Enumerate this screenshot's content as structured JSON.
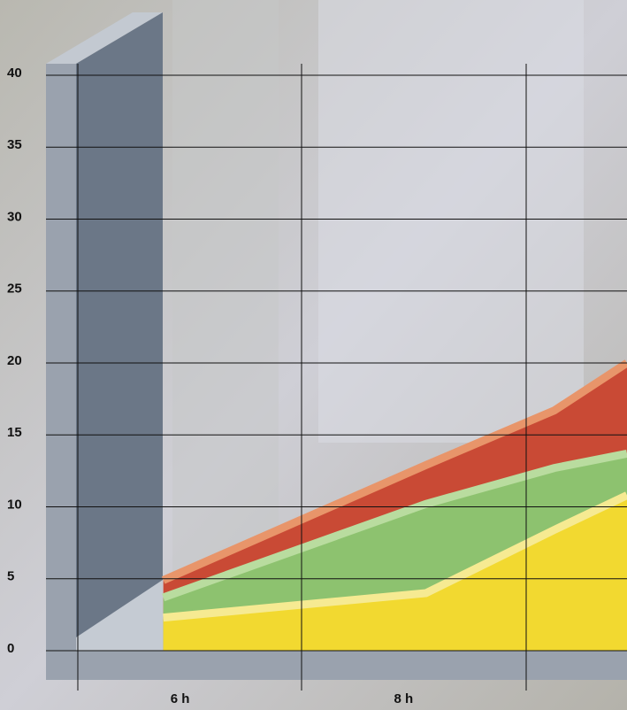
{
  "chart_data": {
    "type": "area",
    "x": [
      5.85,
      8.2,
      9.35,
      10
    ],
    "xlim": [
      4.8,
      10
    ],
    "xticks": [
      {
        "value": 6,
        "label": "6 h"
      },
      {
        "value": 8,
        "label": "8 h"
      }
    ],
    "ylim": [
      0,
      40
    ],
    "yticks": [
      0,
      5,
      10,
      15,
      20,
      25,
      30,
      35,
      40
    ],
    "grid": true,
    "series": [
      {
        "color": "#c94a35",
        "edge_color": "#e8956a",
        "values": [
          4.9,
          12.9,
          16.7,
          20
        ]
      },
      {
        "color": "#8dc26f",
        "edge_color": "#b9dc9f",
        "values": [
          3.7,
          10.2,
          12.7,
          13.7
        ]
      },
      {
        "color": "#f2d930",
        "edge_color": "#f6ea92",
        "values": [
          2.3,
          4.0,
          8.4,
          10.8
        ]
      }
    ]
  }
}
